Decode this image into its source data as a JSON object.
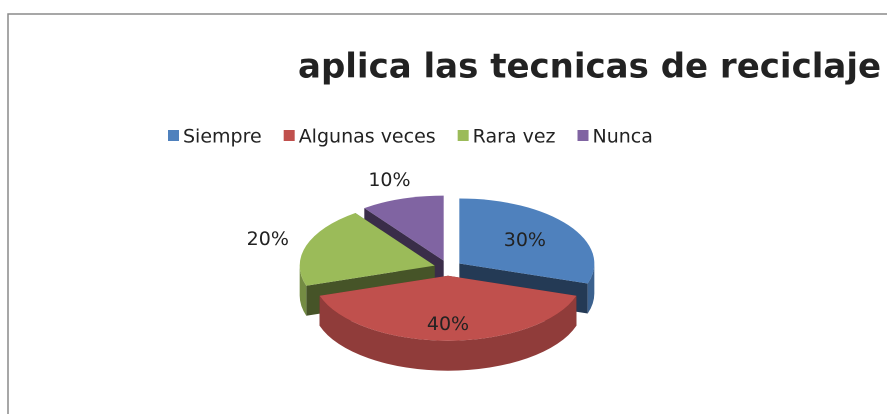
{
  "chart_data": {
    "type": "pie3d",
    "title": "aplica las tecnicas de reciclaje",
    "categories": [
      "Siempre",
      "Algunas veces",
      "Rara vez",
      "Nunca"
    ],
    "values": [
      30,
      40,
      20,
      10
    ],
    "value_labels": [
      "30%",
      "40%",
      "20%",
      "10%"
    ],
    "colors": [
      "#4f81bd",
      "#c0504d",
      "#9bbb59",
      "#8064a2"
    ],
    "legend": "top"
  }
}
